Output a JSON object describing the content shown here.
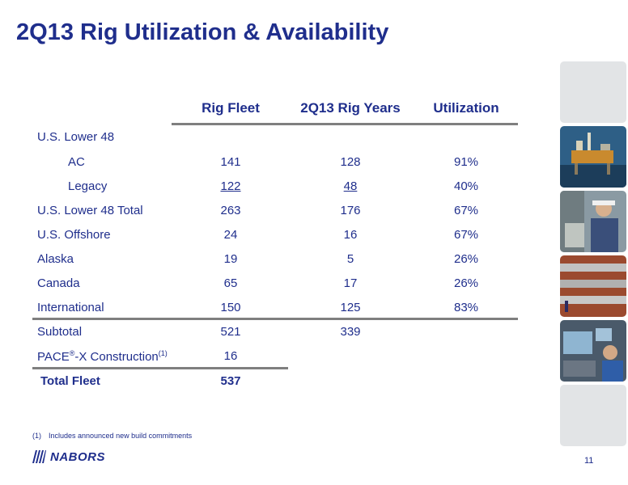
{
  "title": "2Q13 Rig Utilization & Availability",
  "columns": {
    "fleet": "Rig Fleet",
    "years": "2Q13 Rig Years",
    "util": "Utilization"
  },
  "rows": [
    {
      "label": "U.S. Lower 48",
      "fleet": "",
      "years": "",
      "util": ""
    },
    {
      "label": "AC",
      "fleet": "141",
      "years": "128",
      "util": "91%"
    },
    {
      "label": "Legacy",
      "fleet": "122",
      "years": "48",
      "util": "40%"
    },
    {
      "label": "U.S. Lower 48 Total",
      "fleet": "263",
      "years": "176",
      "util": "67%"
    },
    {
      "label": "U.S. Offshore",
      "fleet": "24",
      "years": "16",
      "util": "67%"
    },
    {
      "label": "Alaska",
      "fleet": "19",
      "years": "5",
      "util": "26%"
    },
    {
      "label": "Canada",
      "fleet": "65",
      "years": "17",
      "util": "26%"
    },
    {
      "label": "International",
      "fleet": "150",
      "years": "125",
      "util": "83%"
    },
    {
      "label": "Subtotal",
      "fleet": "521",
      "years": "339",
      "util": ""
    },
    {
      "label_pre": "PACE",
      "label_reg": "®",
      "label_post": "-X Construction",
      "label_sup": "(1)",
      "fleet": "16",
      "years": "",
      "util": ""
    },
    {
      "label": "Total Fleet",
      "fleet": "537",
      "years": "",
      "util": ""
    }
  ],
  "footnote": {
    "number": "(1)",
    "text": "Includes announced new build commitments"
  },
  "logo": {
    "text": "NABORS",
    "icon": "nabors-logo-icon"
  },
  "page_number": "11",
  "colors": {
    "brand": "#1f2e8c",
    "rule": "#7f7f7f",
    "tile": "#e2e4e6"
  }
}
